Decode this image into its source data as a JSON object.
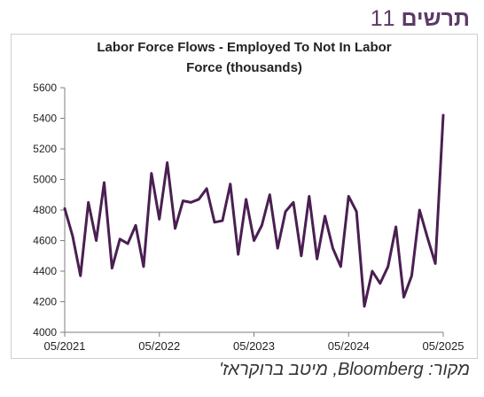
{
  "heading": {
    "word": "תרשים",
    "number": "11"
  },
  "source": "מקור: Bloomberg, מיטב ברוקראז'",
  "colors": {
    "line": "#4a1f52",
    "heading": "#5a3a66",
    "axis": "#7f7f7f"
  },
  "chart_data": {
    "type": "line",
    "title": "Labor Force Flows - Employed To Not In Labor Force (thousands)",
    "title_lines": [
      "Labor Force Flows - Employed To Not In Labor",
      "Force (thousands)"
    ],
    "xlabel": "",
    "ylabel": "",
    "ylim": [
      4000,
      5600
    ],
    "yticks": [
      4000,
      4200,
      4400,
      4600,
      4800,
      5000,
      5200,
      5400,
      5600
    ],
    "xlim": [
      "2021-05",
      "2025-05"
    ],
    "xticks": [
      "05/2021",
      "05/2022",
      "05/2023",
      "05/2024",
      "05/2025"
    ],
    "grid": false,
    "x": [
      "2021-05",
      "2021-06",
      "2021-07",
      "2021-08",
      "2021-09",
      "2021-10",
      "2021-11",
      "2021-12",
      "2022-01",
      "2022-02",
      "2022-03",
      "2022-04",
      "2022-05",
      "2022-06",
      "2022-07",
      "2022-08",
      "2022-09",
      "2022-10",
      "2022-11",
      "2022-12",
      "2023-01",
      "2023-02",
      "2023-03",
      "2023-04",
      "2023-05",
      "2023-06",
      "2023-07",
      "2023-08",
      "2023-09",
      "2023-10",
      "2023-11",
      "2023-12",
      "2024-01",
      "2024-02",
      "2024-03",
      "2024-04",
      "2024-05",
      "2024-06",
      "2024-07",
      "2024-08",
      "2024-09",
      "2024-10",
      "2024-11",
      "2024-12",
      "2025-01",
      "2025-02",
      "2025-03",
      "2025-04",
      "2025-05"
    ],
    "series": [
      {
        "values": [
          4810,
          4630,
          4370,
          4850,
          4600,
          4980,
          4420,
          4610,
          4580,
          4700,
          4430,
          5040,
          4740,
          5110,
          4680,
          4860,
          4850,
          4870,
          4940,
          4720,
          4730,
          4970,
          4510,
          4870,
          4600,
          4700,
          4900,
          4550,
          4790,
          4850,
          4500,
          4890,
          4480,
          4760,
          4550,
          4430,
          4890,
          4790,
          4170,
          4400,
          4320,
          4430,
          4690,
          4230,
          4370,
          4800,
          4620,
          4450,
          5420
        ]
      }
    ]
  }
}
